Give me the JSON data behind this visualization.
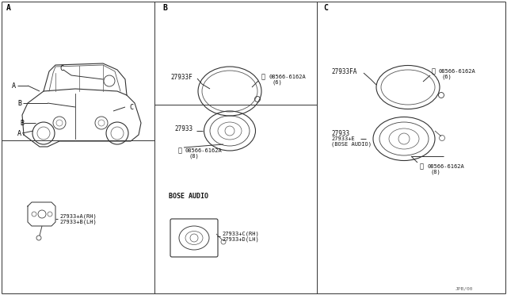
{
  "bg_color": "#ffffff",
  "line_color": "#000000",
  "light_gray": "#aaaaaa",
  "diagram_color": "#333333",
  "section_labels": [
    "A",
    "B",
    "C"
  ],
  "section_A_label": "A",
  "section_B_label": "B",
  "section_C_label": "C",
  "footer_text": "JPB/00",
  "parts": {
    "A_part_labels": [
      "27933+A(RH)",
      "27933+B(LH)"
    ],
    "B_part_labels": [
      "27933F",
      "S08566-6162A\n(6)",
      "27933",
      "S08566-6162A\n(8)",
      "BOSE AUDIO",
      "27933+C(RH)",
      "27933+D(LH)"
    ],
    "C_part_labels": [
      "27933FA",
      "S08566-6162A\n(6)",
      "27933",
      "27933+E\n(BOSE AUDIO)",
      "S08566-6162A\n(8)"
    ],
    "car_labels": [
      "A",
      "B",
      "C",
      "A",
      "B",
      "C"
    ]
  }
}
